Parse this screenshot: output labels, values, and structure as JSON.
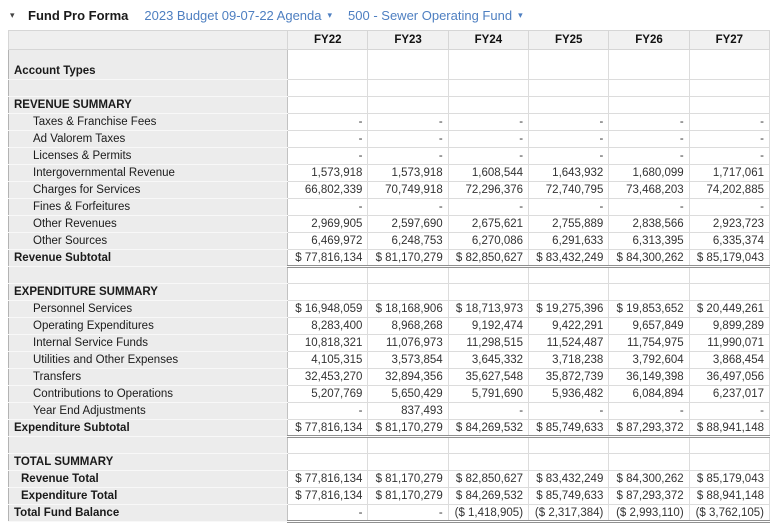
{
  "header": {
    "collapse_icon": "▾",
    "title": "Fund Pro Forma",
    "budget_dropdown": "2023 Budget 09-07-22 Agenda",
    "budget_caret": "▾",
    "fund_dropdown": "500 - Sewer Operating Fund",
    "fund_caret": "▾"
  },
  "colors": {
    "link_blue": "#4e7fc1",
    "label_column_bg": "#ececec",
    "header_row_bg": "#f1f1f1",
    "grid_line": "#dcdcdc",
    "subtotal_rule": "#909090"
  },
  "table": {
    "columns": [
      "FY22",
      "FY23",
      "FY24",
      "FY25",
      "FY26",
      "FY27"
    ],
    "rows": [
      {
        "type": "group",
        "label": "Account Types",
        "values": [
          "",
          "",
          "",
          "",
          "",
          ""
        ]
      },
      {
        "type": "spacer",
        "label": "",
        "values": [
          "",
          "",
          "",
          "",
          "",
          ""
        ]
      },
      {
        "type": "section",
        "label": "REVENUE SUMMARY",
        "values": [
          "",
          "",
          "",
          "",
          "",
          ""
        ]
      },
      {
        "type": "detail",
        "label": "Taxes & Franchise Fees",
        "values": [
          "-",
          "-",
          "-",
          "-",
          "-",
          "-"
        ]
      },
      {
        "type": "detail",
        "label": "Ad Valorem Taxes",
        "values": [
          "-",
          "-",
          "-",
          "-",
          "-",
          "-"
        ]
      },
      {
        "type": "detail",
        "label": "Licenses & Permits",
        "values": [
          "-",
          "-",
          "-",
          "-",
          "-",
          "-"
        ]
      },
      {
        "type": "detail",
        "label": "Intergovernmental Revenue",
        "values": [
          "1,573,918",
          "1,573,918",
          "1,608,544",
          "1,643,932",
          "1,680,099",
          "1,717,061"
        ]
      },
      {
        "type": "detail",
        "label": "Charges for Services",
        "values": [
          "66,802,339",
          "70,749,918",
          "72,296,376",
          "72,740,795",
          "73,468,203",
          "74,202,885"
        ]
      },
      {
        "type": "detail",
        "label": "Fines & Forfeitures",
        "values": [
          "-",
          "-",
          "-",
          "-",
          "-",
          "-"
        ]
      },
      {
        "type": "detail",
        "label": "Other Revenues",
        "values": [
          "2,969,905",
          "2,597,690",
          "2,675,621",
          "2,755,889",
          "2,838,566",
          "2,923,723"
        ]
      },
      {
        "type": "detail",
        "label": "Other Sources",
        "values": [
          "6,469,972",
          "6,248,753",
          "6,270,086",
          "6,291,633",
          "6,313,395",
          "6,335,374"
        ]
      },
      {
        "type": "subtotal",
        "label": "Revenue Subtotal",
        "values": [
          "$ 77,816,134",
          "$ 81,170,279",
          "$ 82,850,627",
          "$ 83,432,249",
          "$ 84,300,262",
          "$ 85,179,043"
        ]
      },
      {
        "type": "spacer",
        "label": "",
        "values": [
          "",
          "",
          "",
          "",
          "",
          ""
        ]
      },
      {
        "type": "section",
        "label": "EXPENDITURE SUMMARY",
        "values": [
          "",
          "",
          "",
          "",
          "",
          ""
        ]
      },
      {
        "type": "detail",
        "label": "Personnel Services",
        "values": [
          "$ 16,948,059",
          "$ 18,168,906",
          "$ 18,713,973",
          "$ 19,275,396",
          "$ 19,853,652",
          "$ 20,449,261"
        ]
      },
      {
        "type": "detail",
        "label": "Operating Expenditures",
        "values": [
          "8,283,400",
          "8,968,268",
          "9,192,474",
          "9,422,291",
          "9,657,849",
          "9,899,289"
        ]
      },
      {
        "type": "detail",
        "label": "Internal Service Funds",
        "values": [
          "10,818,321",
          "11,076,973",
          "11,298,515",
          "11,524,487",
          "11,754,975",
          "11,990,071"
        ]
      },
      {
        "type": "detail",
        "label": "Utilities and Other Expenses",
        "values": [
          "4,105,315",
          "3,573,854",
          "3,645,332",
          "3,718,238",
          "3,792,604",
          "3,868,454"
        ]
      },
      {
        "type": "detail",
        "label": "Transfers",
        "values": [
          "32,453,270",
          "32,894,356",
          "35,627,548",
          "35,872,739",
          "36,149,398",
          "36,497,056"
        ]
      },
      {
        "type": "detail",
        "label": "Contributions to Operations",
        "values": [
          "5,207,769",
          "5,650,429",
          "5,791,690",
          "5,936,482",
          "6,084,894",
          "6,237,017"
        ]
      },
      {
        "type": "detail",
        "label": "Year End Adjustments",
        "values": [
          "-",
          "837,493",
          "-",
          "-",
          "-",
          "-"
        ]
      },
      {
        "type": "subtotal",
        "label": "Expenditure Subtotal",
        "values": [
          "$ 77,816,134",
          "$ 81,170,279",
          "$ 84,269,532",
          "$ 85,749,633",
          "$ 87,293,372",
          "$ 88,941,148"
        ]
      },
      {
        "type": "spacer",
        "label": "",
        "values": [
          "",
          "",
          "",
          "",
          "",
          ""
        ]
      },
      {
        "type": "section",
        "label": "TOTAL SUMMARY",
        "values": [
          "",
          "",
          "",
          "",
          "",
          ""
        ]
      },
      {
        "type": "total",
        "label": "Revenue Total",
        "values": [
          "$ 77,816,134",
          "$ 81,170,279",
          "$ 82,850,627",
          "$ 83,432,249",
          "$ 84,300,262",
          "$ 85,179,043"
        ]
      },
      {
        "type": "total",
        "label": "Expenditure Total",
        "values": [
          "$ 77,816,134",
          "$ 81,170,279",
          "$ 84,269,532",
          "$ 85,749,633",
          "$ 87,293,372",
          "$ 88,941,148"
        ]
      },
      {
        "type": "subtotal",
        "label": "Total Fund Balance",
        "values": [
          "-",
          "-",
          "($ 1,418,905)",
          "($ 2,317,384)",
          "($ 2,993,110)",
          "($ 3,762,105)"
        ]
      }
    ]
  }
}
